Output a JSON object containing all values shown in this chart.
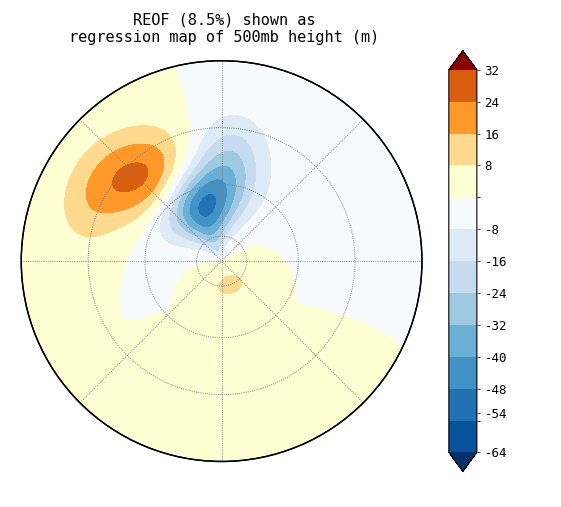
{
  "title_line1": "REOF (8.5%) shown as",
  "title_line2": "regression map of 500mb height (m)",
  "background_color": "#ffffff",
  "title_fontsize": 11,
  "colorbar_fontsize": 9,
  "cmap_colors": [
    "#08306b",
    "#08519c",
    "#2171b5",
    "#4292c6",
    "#6baed6",
    "#9ecae1",
    "#c6dbef",
    "#deebf7",
    "#f7fbff",
    "#ffffd4",
    "#fed98e",
    "#fe9929",
    "#d95f0e",
    "#8b0000"
  ],
  "levels": [
    -64,
    -56,
    -48,
    -40,
    -32,
    -24,
    -16,
    -8,
    0,
    8,
    16,
    24,
    32
  ],
  "cb_ticks": [
    32,
    24,
    16,
    8,
    -8,
    -16,
    -24,
    -32,
    -40,
    -48,
    -54,
    -64
  ],
  "cb_tick_labels": [
    "32",
    "24",
    "16",
    "8",
    "-8",
    "-16",
    "-24",
    "-32",
    "-40",
    "-48",
    "-54",
    "-64"
  ],
  "blobs": [
    {
      "lon": 200,
      "lat": 65,
      "amp": -58,
      "slon": 28,
      "slat": 13
    },
    {
      "lon": 218,
      "lat": 51,
      "amp": 40,
      "slon": 20,
      "slat": 10
    },
    {
      "lon": 20,
      "lat": 80,
      "amp": 10,
      "slon": 40,
      "slat": 5
    },
    {
      "lon": 238,
      "lat": 37,
      "amp": 14,
      "slon": 18,
      "slat": 8
    },
    {
      "lon": 355,
      "lat": 45,
      "amp": 8,
      "slon": 15,
      "slat": 8
    },
    {
      "lon": 175,
      "lat": 47,
      "amp": -12,
      "slon": 12,
      "slat": 10
    }
  ],
  "lat_min": 20,
  "lat_max": 90,
  "grid_lats": [
    20,
    40,
    60,
    80
  ],
  "grid_lons": [
    0,
    45,
    90,
    135,
    180,
    225,
    270,
    315
  ]
}
